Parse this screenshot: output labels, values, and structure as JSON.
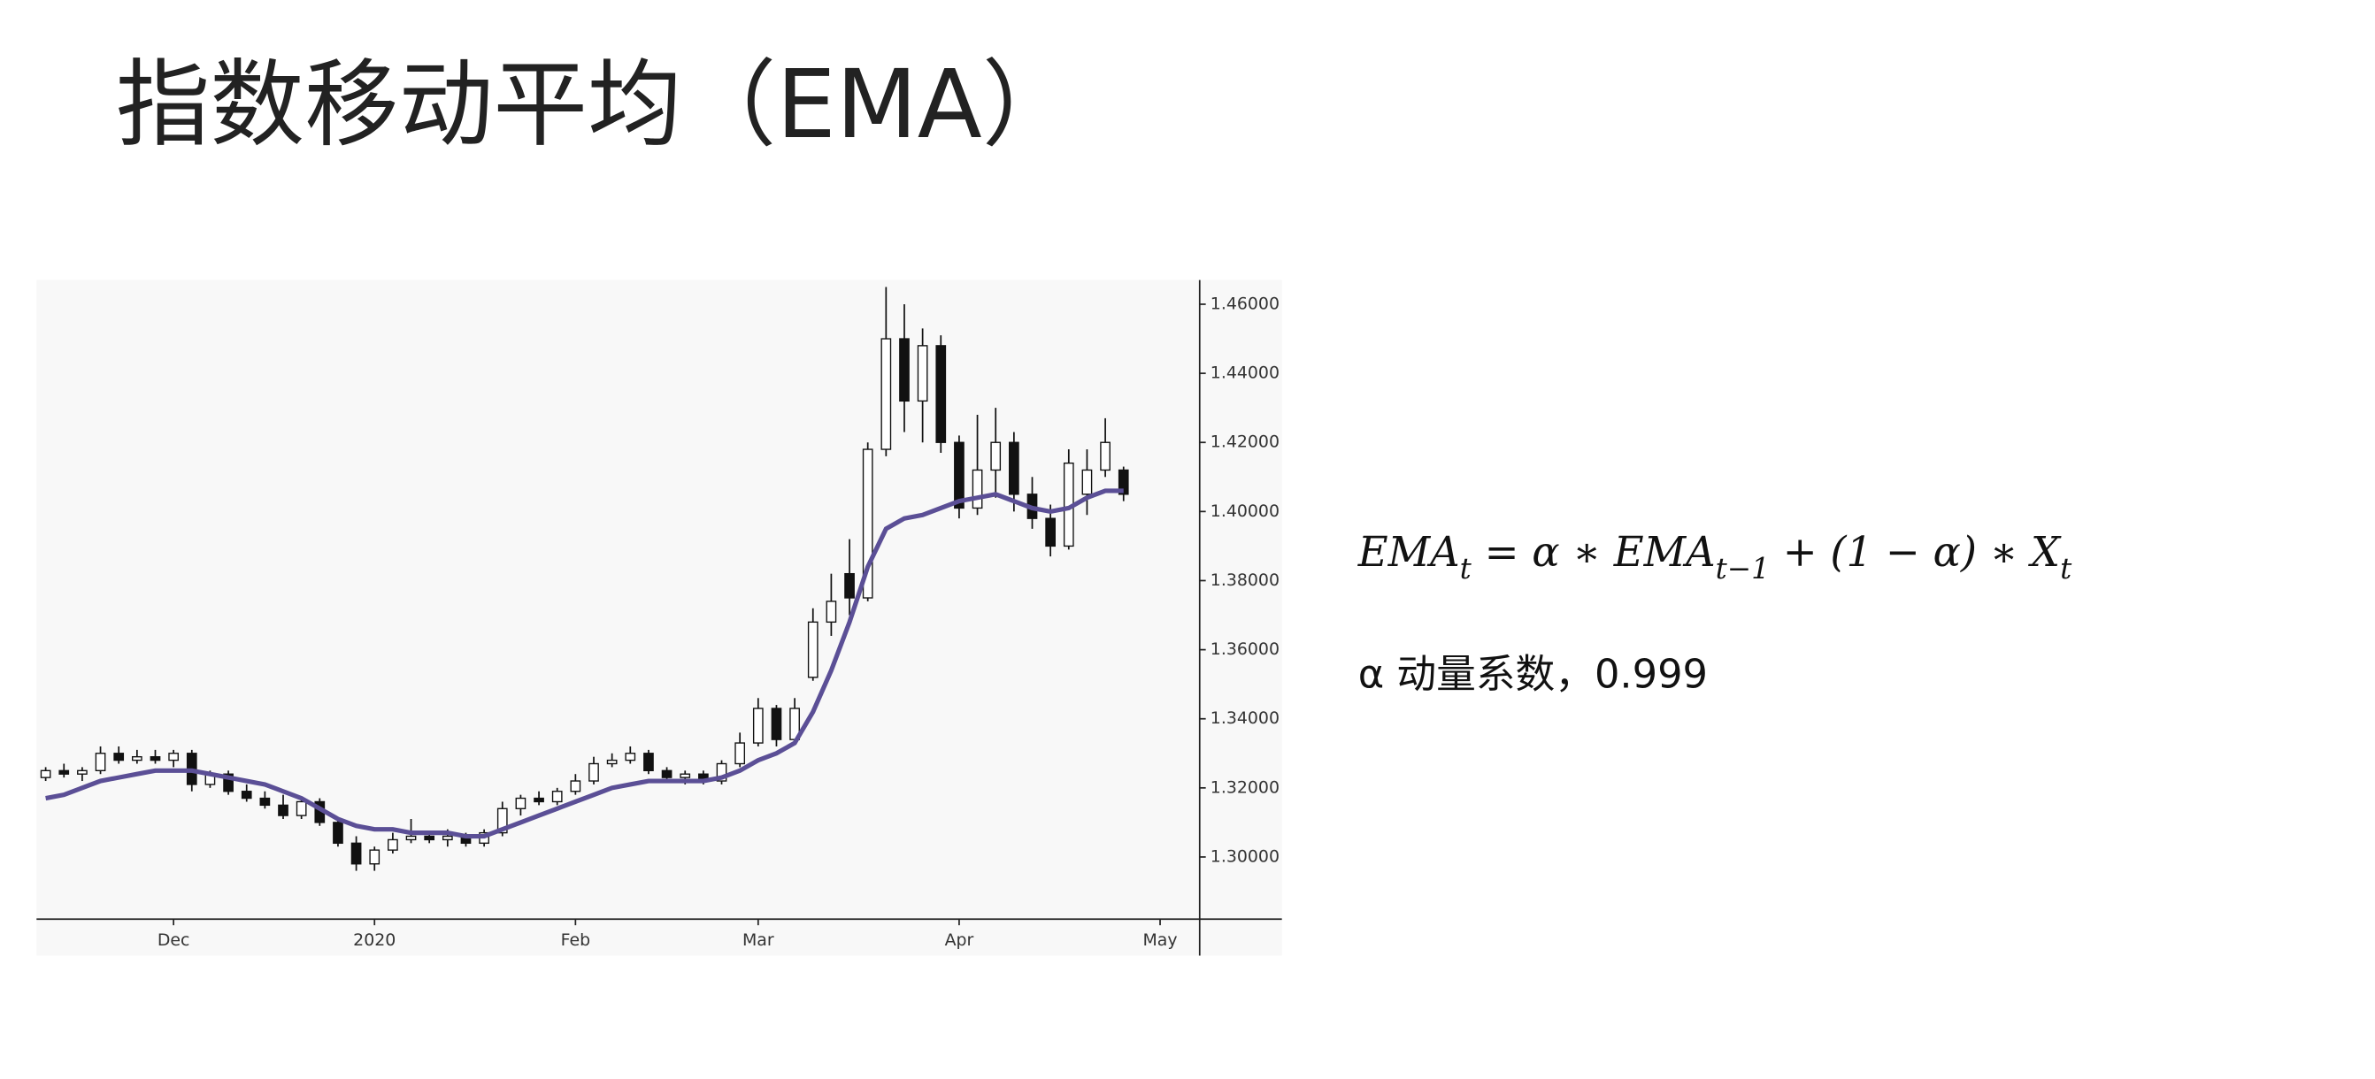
{
  "title": "指数移动平均（EMA）",
  "formula": [
    "EMA",
    "t",
    " = α ∗ EMA",
    "t−1",
    " + (1 − α) ∗ X",
    "t"
  ],
  "note": "α 动量系数，0.999",
  "chart_data": {
    "type": "candlestick",
    "categories": [
      null,
      null,
      null,
      null,
      null,
      null,
      null,
      "Dec",
      null,
      null,
      null,
      null,
      null,
      null,
      null,
      null,
      null,
      null,
      "2020",
      null,
      null,
      null,
      null,
      null,
      null,
      null,
      null,
      null,
      null,
      "Feb",
      null,
      null,
      null,
      null,
      null,
      null,
      null,
      null,
      null,
      "Mar",
      null,
      null,
      null,
      null,
      null,
      null,
      null,
      null,
      null,
      null,
      "Apr",
      null,
      null,
      null,
      null,
      null,
      null,
      null,
      null,
      null,
      null,
      "May"
    ],
    "open": [
      1.323,
      1.325,
      1.324,
      1.325,
      1.33,
      1.328,
      1.329,
      1.328,
      1.33,
      1.321,
      1.324,
      1.319,
      1.317,
      1.315,
      1.312,
      1.316,
      1.31,
      1.304,
      1.298,
      1.302,
      1.305,
      1.306,
      1.305,
      1.306,
      1.304,
      1.307,
      1.314,
      1.317,
      1.316,
      1.319,
      1.322,
      1.327,
      1.328,
      1.33,
      1.325,
      1.323,
      1.324,
      1.322,
      1.327,
      1.333,
      1.343,
      1.334,
      1.352,
      1.368,
      1.382,
      1.375,
      1.418,
      1.45,
      1.432,
      1.448,
      1.42,
      1.401,
      1.412,
      1.42,
      1.405,
      1.398,
      1.39,
      1.405,
      1.412,
      1.412,
      null,
      null
    ],
    "high": [
      1.326,
      1.327,
      1.326,
      1.332,
      1.332,
      1.331,
      1.331,
      1.331,
      1.331,
      1.325,
      1.325,
      1.321,
      1.319,
      1.318,
      1.317,
      1.317,
      1.311,
      1.306,
      1.303,
      1.307,
      1.311,
      1.307,
      1.308,
      1.307,
      1.308,
      1.316,
      1.318,
      1.319,
      1.32,
      1.324,
      1.329,
      1.33,
      1.332,
      1.331,
      1.326,
      1.325,
      1.325,
      1.328,
      1.336,
      1.346,
      1.344,
      1.346,
      1.372,
      1.382,
      1.392,
      1.42,
      1.465,
      1.46,
      1.453,
      1.451,
      1.422,
      1.428,
      1.43,
      1.423,
      1.41,
      1.402,
      1.418,
      1.418,
      1.427,
      1.413,
      null,
      null
    ],
    "low": [
      1.322,
      1.323,
      1.322,
      1.324,
      1.327,
      1.327,
      1.327,
      1.326,
      1.319,
      1.32,
      1.318,
      1.316,
      1.314,
      1.311,
      1.311,
      1.309,
      1.303,
      1.296,
      1.296,
      1.301,
      1.304,
      1.304,
      1.303,
      1.303,
      1.303,
      1.306,
      1.312,
      1.315,
      1.315,
      1.318,
      1.321,
      1.326,
      1.327,
      1.324,
      1.322,
      1.321,
      1.321,
      1.321,
      1.326,
      1.332,
      1.332,
      1.333,
      1.351,
      1.364,
      1.37,
      1.374,
      1.416,
      1.423,
      1.42,
      1.417,
      1.398,
      1.399,
      1.404,
      1.4,
      1.395,
      1.387,
      1.389,
      1.399,
      1.41,
      1.403,
      null,
      null
    ],
    "close": [
      1.325,
      1.324,
      1.325,
      1.33,
      1.328,
      1.329,
      1.328,
      1.33,
      1.321,
      1.324,
      1.319,
      1.317,
      1.315,
      1.312,
      1.316,
      1.31,
      1.304,
      1.298,
      1.302,
      1.305,
      1.306,
      1.305,
      1.306,
      1.304,
      1.307,
      1.314,
      1.317,
      1.316,
      1.319,
      1.322,
      1.327,
      1.328,
      1.33,
      1.325,
      1.323,
      1.324,
      1.322,
      1.327,
      1.333,
      1.343,
      1.334,
      1.343,
      1.368,
      1.374,
      1.375,
      1.418,
      1.45,
      1.432,
      1.448,
      1.42,
      1.401,
      1.412,
      1.42,
      1.405,
      1.398,
      1.39,
      1.414,
      1.412,
      1.42,
      1.405,
      null,
      null
    ],
    "ema": {
      "color": "#5b4f96",
      "values": [
        1.317,
        1.318,
        1.32,
        1.322,
        1.323,
        1.324,
        1.325,
        1.325,
        1.325,
        1.324,
        1.323,
        1.322,
        1.321,
        1.319,
        1.317,
        1.314,
        1.311,
        1.309,
        1.308,
        1.308,
        1.307,
        1.307,
        1.307,
        1.306,
        1.306,
        1.308,
        1.31,
        1.312,
        1.314,
        1.316,
        1.318,
        1.32,
        1.321,
        1.322,
        1.322,
        1.322,
        1.322,
        1.323,
        1.325,
        1.328,
        1.33,
        1.333,
        1.342,
        1.354,
        1.368,
        1.384,
        1.395,
        1.398,
        1.399,
        1.401,
        1.403,
        1.404,
        1.405,
        1.403,
        1.401,
        1.4,
        1.401,
        1.404,
        1.406,
        1.406,
        null,
        null
      ]
    },
    "ylim": [
      1.282,
      1.467
    ],
    "yticks": [
      {
        "value": 1.3,
        "label": "1.30000"
      },
      {
        "value": 1.32,
        "label": "1.32000"
      },
      {
        "value": 1.34,
        "label": "1.34000"
      },
      {
        "value": 1.36,
        "label": "1.36000"
      },
      {
        "value": 1.38,
        "label": "1.38000"
      },
      {
        "value": 1.4,
        "label": "1.40000"
      },
      {
        "value": 1.42,
        "label": "1.42000"
      },
      {
        "value": 1.44,
        "label": "1.44000"
      },
      {
        "value": 1.46,
        "label": "1.46000"
      }
    ]
  }
}
